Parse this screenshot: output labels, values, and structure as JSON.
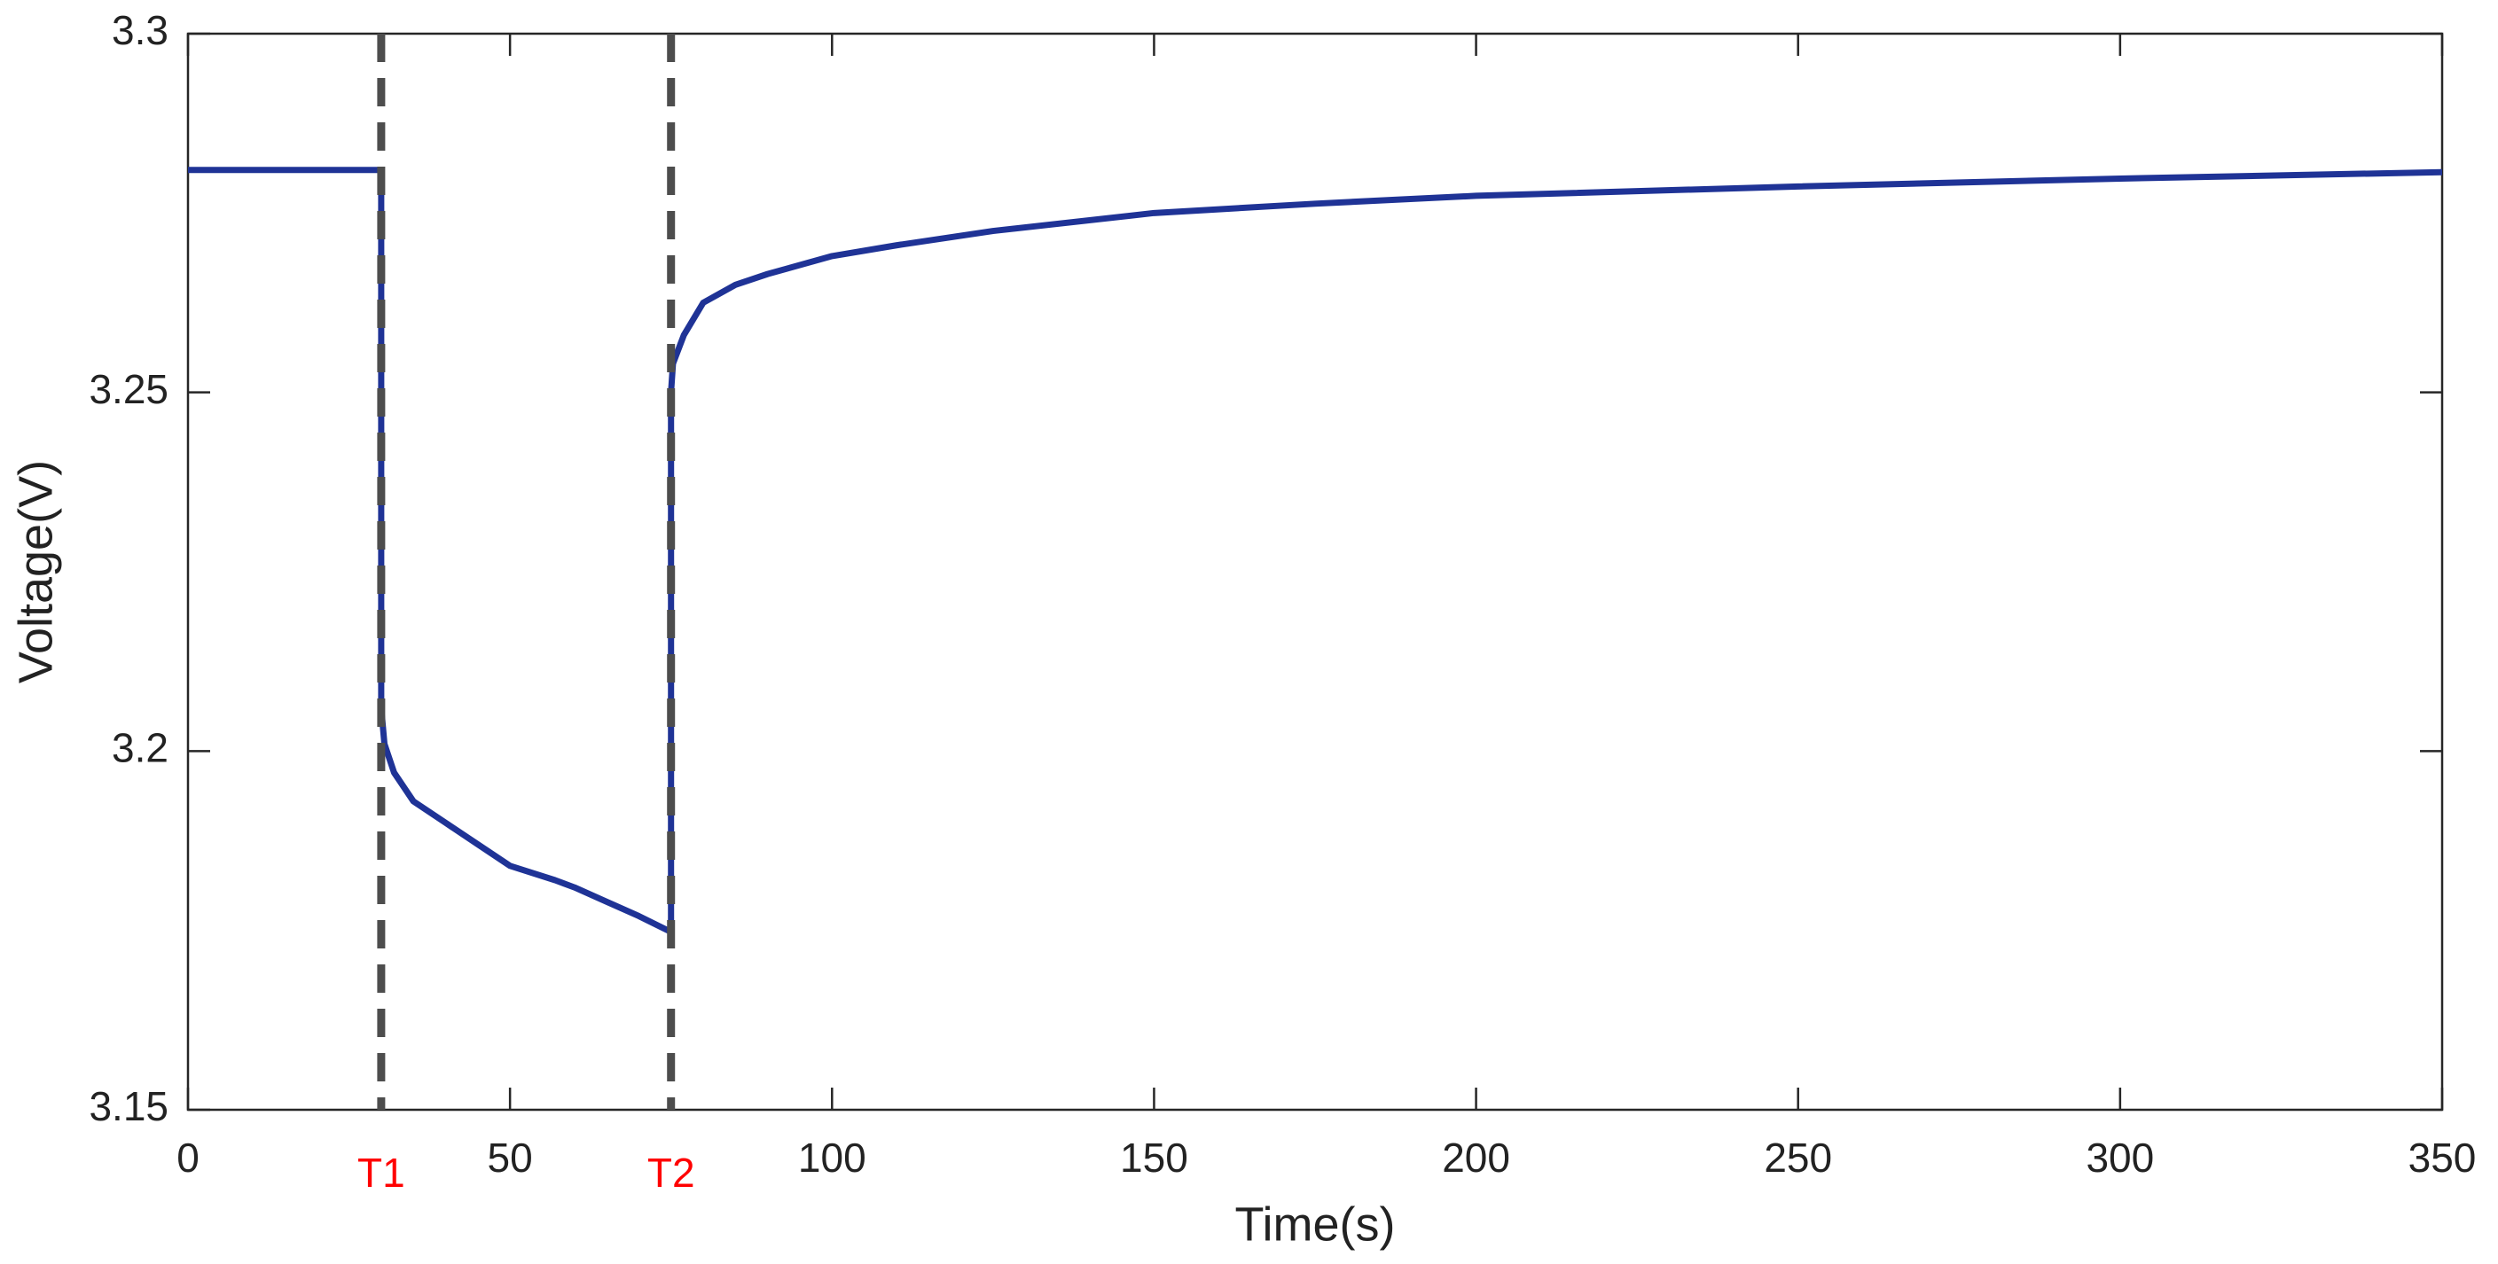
{
  "chart_data": {
    "type": "line",
    "xlabel": "Time(s)",
    "ylabel": "Voltage(V)",
    "x": [
      0,
      30,
      30,
      30.5,
      32,
      35,
      40,
      45,
      50,
      57,
      60,
      65,
      70,
      74.5,
      75,
      75,
      75.3,
      77,
      80,
      85,
      90,
      100,
      110,
      125,
      150,
      175,
      200,
      250,
      300,
      350
    ],
    "series": [
      {
        "color": "#1f3396",
        "values": [
          3.281,
          3.281,
          3.206,
          3.201,
          3.197,
          3.193,
          3.19,
          3.187,
          3.184,
          3.182,
          3.181,
          3.179,
          3.177,
          3.175,
          3.175,
          3.25,
          3.254,
          3.258,
          3.2625,
          3.265,
          3.2665,
          3.269,
          3.2705,
          3.2725,
          3.275,
          3.2763,
          3.2774,
          3.2787,
          3.2798,
          3.2807
        ]
      }
    ],
    "vlines": [
      {
        "x": 30,
        "label": "T1"
      },
      {
        "x": 75,
        "label": "T2"
      }
    ],
    "vline_color": "#4d4d4d",
    "vline_label_color": "#ff0000",
    "xlim": [
      0,
      350
    ],
    "xticks": [
      0,
      50,
      100,
      150,
      200,
      250,
      300,
      350
    ],
    "ylim": [
      3.15,
      3.3
    ],
    "yticks": [
      3.15,
      3.2,
      3.25,
      3.3
    ]
  }
}
